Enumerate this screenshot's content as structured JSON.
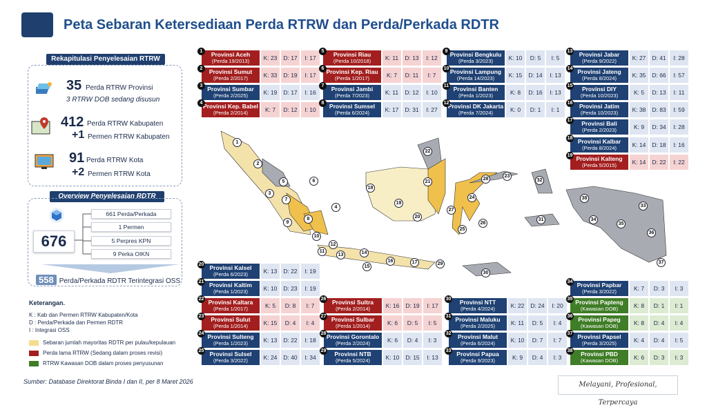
{
  "title": "Peta Sebaran Ketersediaan Perda RTRW dan Perda/Perkada RDTR",
  "rekap": {
    "header": "Rekapitulasi Penyelesaian RTRW",
    "prov_num": "35",
    "prov_text": "Perda RTRW Provinsi",
    "prov_sub": "3 RTRW DOB sedang disusun",
    "kab_num": "412",
    "kab_text": "Perda RTRW Kabupaten",
    "kab_plus": "+1",
    "kab_plus_text": "Permen RTRW Kabupaten",
    "kota_num": "91",
    "kota_text": "Perda RTRW Kota",
    "kota_plus": "+2",
    "kota_plus_text": "Permen RTRW Kota"
  },
  "rdtr": {
    "header": "Overview Penyelesaian RDTR",
    "total": "676",
    "items": [
      "661 Perda/Perkada",
      "1 Permen",
      "5 Perpres KPN",
      "9 Perka OIKN"
    ],
    "oss_num": "558",
    "oss_text": "Perda/Perkada RDTR Terintegrasi OSS"
  },
  "keterangan": {
    "title": "Keterangan.",
    "k": "K : Kab dan Permen RTRW Kabupaten/Kota",
    "d": "D : Perda/Perkada dan Permen RDTR",
    "i": "I   : Integrasi OSS",
    "leg1": "Sebaran jumlah mayoritas RDTR per pulau/kepulauan",
    "leg2": "Perda lama RTRW (Sedang dalam proses revisi)",
    "leg3": "RTRW Kawasan DOB dalam proses penyusunan",
    "c1": "#f5dc8c",
    "c2": "#a31f1f",
    "c3": "#3f7d26"
  },
  "provinces": [
    {
      "n": "1",
      "name": "Provinsi Aceh",
      "perda": "(Perda 19/2013)",
      "k": "K: 23",
      "d": "D: 17",
      "i": "I: 17",
      "c": "red"
    },
    {
      "n": "2",
      "name": "Provinsi Sumut",
      "perda": "(Perda 2/2017)",
      "k": "K: 33",
      "d": "D: 19",
      "i": "I: 17",
      "c": "red"
    },
    {
      "n": "3",
      "name": "Provinsi Sumbar",
      "perda": "(Perda 2/2025)",
      "k": "K: 19",
      "d": "D: 17",
      "i": "I: 16",
      "c": "blue"
    },
    {
      "n": "4",
      "name": "Provinsi Kep. Babel",
      "perda": "(Perda 2/2014)",
      "k": "K: 7",
      "d": "D: 12",
      "i": "I: 10",
      "c": "red"
    },
    {
      "n": "5",
      "name": "Provinsi Riau",
      "perda": "(Perda 10/2018)",
      "k": "K: 11",
      "d": "D: 13",
      "i": "I: 12",
      "c": "red"
    },
    {
      "n": "6",
      "name": "Provinsi Kep. Riau",
      "perda": "(Perda 1/2017)",
      "k": "K: 7",
      "d": "D: 11",
      "i": "I: 7",
      "c": "red"
    },
    {
      "n": "7",
      "name": "Provinsi Jambi",
      "perda": "(Perda 7/2023)",
      "k": "K: 11",
      "d": "D: 12",
      "i": "I: 10",
      "c": "blue"
    },
    {
      "n": "8",
      "name": "Provinsi Sumsel",
      "perda": "(Perda 6/2024)",
      "k": "K: 17",
      "d": "D: 31",
      "i": "I: 27",
      "c": "blue"
    },
    {
      "n": "9",
      "name": "Provinsi Bengkulu",
      "perda": "(Perda 3/2023)",
      "k": "K: 10",
      "d": "D: 5",
      "i": "I: 5",
      "c": "blue"
    },
    {
      "n": "10",
      "name": "Provinsi Lampung",
      "perda": "(Perda 14/2023)",
      "k": "K: 15",
      "d": "D: 14",
      "i": "I: 13",
      "c": "blue"
    },
    {
      "n": "11",
      "name": "Provinsi Banten",
      "perda": "(Perda 1/2023)",
      "k": "K: 8",
      "d": "D: 16",
      "i": "I: 13",
      "c": "blue"
    },
    {
      "n": "12",
      "name": "Provinsi DK Jakarta",
      "perda": "(Perda 7/2024)",
      "k": "K: 0",
      "d": "D: 1",
      "i": "I: 1",
      "c": "blue"
    },
    {
      "n": "13",
      "name": "Provinsi Jabar",
      "perda": "(Perda 9/2022)",
      "k": "K: 27",
      "d": "D: 41",
      "i": "I: 28",
      "c": "blue"
    },
    {
      "n": "14",
      "name": "Provinsi Jateng",
      "perda": "(Perda 8/2024)",
      "k": "K: 35",
      "d": "D: 66",
      "i": "I: 57",
      "c": "blue"
    },
    {
      "n": "15",
      "name": "Provinsi DIY",
      "perda": "(Perda 10/2023)",
      "k": "K: 5",
      "d": "D: 13",
      "i": "I: 11",
      "c": "blue"
    },
    {
      "n": "16",
      "name": "Provinsi Jatim",
      "perda": "(Perda 10/2023)",
      "k": "K: 38",
      "d": "D: 83",
      "i": "I: 59",
      "c": "blue"
    },
    {
      "n": "17",
      "name": "Provinsi Bali",
      "perda": "(Perda 2/2023)",
      "k": "K: 9",
      "d": "D: 34",
      "i": "I: 28",
      "c": "blue"
    },
    {
      "n": "18",
      "name": "Provinsi Kalbar",
      "perda": "(Perda 8/2024)",
      "k": "K: 14",
      "d": "D: 18",
      "i": "I: 16",
      "c": "blue"
    },
    {
      "n": "19",
      "name": "Provinsi Kalteng",
      "perda": "(Perda 5/2015)",
      "k": "K: 14",
      "d": "D: 22",
      "i": "I: 22",
      "c": "red"
    },
    {
      "n": "20",
      "name": "Provinsi Kalsel",
      "perda": "(Perda 6/2023)",
      "k": "K: 13",
      "d": "D: 22",
      "i": "I: 19",
      "c": "blue"
    },
    {
      "n": "21",
      "name": "Provinsi Kaltim",
      "perda": "(Perda 1/2023)",
      "k": "K: 10",
      "d": "D: 23",
      "i": "I: 19",
      "c": "blue"
    },
    {
      "n": "22",
      "name": "Provinsi Kaltara",
      "perda": "(Perda 1/2017)",
      "k": "K: 5",
      "d": "D: 8",
      "i": "I: 7",
      "c": "red"
    },
    {
      "n": "23",
      "name": "Provinsi Sulut",
      "perda": "(Perda 1/2014)",
      "k": "K: 15",
      "d": "D: 4",
      "i": "I: 4",
      "c": "red"
    },
    {
      "n": "24",
      "name": "Provinsi Sulteng",
      "perda": "(Perda 1/2023)",
      "k": "K: 13",
      "d": "D: 22",
      "i": "I: 18",
      "c": "blue"
    },
    {
      "n": "25",
      "name": "Provinsi Sulsel",
      "perda": "(Perda 3/2022)",
      "k": "K: 24",
      "d": "D: 40",
      "i": "I: 34",
      "c": "blue"
    },
    {
      "n": "26",
      "name": "Provinsi Sultra",
      "perda": "(Perda 2/2014)",
      "k": "K: 16",
      "d": "D: 19",
      "i": "I: 17",
      "c": "red"
    },
    {
      "n": "27",
      "name": "Provinsi Sulbar",
      "perda": "(Perda 1/2014)",
      "k": "K: 6",
      "d": "D: 5",
      "i": "I: 5",
      "c": "red"
    },
    {
      "n": "28",
      "name": "Provinsi Gorontalo",
      "perda": "(Perda 2/2024)",
      "k": "K: 6",
      "d": "D: 4",
      "i": "I: 3",
      "c": "blue"
    },
    {
      "n": "29",
      "name": "Provinsi NTB",
      "perda": "(Perda 5/2024)",
      "k": "K: 10",
      "d": "D: 15",
      "i": "I: 13",
      "c": "blue"
    },
    {
      "n": "30",
      "name": "Provinsi NTT",
      "perda": "(Perda 4/2024)",
      "k": "K: 22",
      "d": "D: 24",
      "i": "I: 20",
      "c": "blue"
    },
    {
      "n": "31",
      "name": "Provinsi Maluku",
      "perda": "(Perda 2/2025)",
      "k": "K: 11",
      "d": "D: 5",
      "i": "I: 4",
      "c": "blue"
    },
    {
      "n": "32",
      "name": "Provinsi Malut",
      "perda": "(Perda 6/2024)",
      "k": "K: 10",
      "d": "D: 7",
      "i": "I: 7",
      "c": "blue"
    },
    {
      "n": "33",
      "name": "Provinsi Papua",
      "perda": "(Perda 9/2023)",
      "k": "K: 9",
      "d": "D: 4",
      "i": "I: 3",
      "c": "blue"
    },
    {
      "n": "34",
      "name": "Provinsi Papbar",
      "perda": "(Perda 3/2022)",
      "k": "K: 7",
      "d": "D: 3",
      "i": "I: 3",
      "c": "blue"
    },
    {
      "n": "35",
      "name": "Provinsi Papteng",
      "perda": "(Kawasan DOB)",
      "k": "K: 8",
      "d": "D: 1",
      "i": "I: 1",
      "c": "green"
    },
    {
      "n": "36",
      "name": "Provinsi Papeg",
      "perda": "(Kawasan DOB)",
      "k": "K: 8",
      "d": "D: 4",
      "i": "I: 4",
      "c": "green"
    },
    {
      "n": "37",
      "name": "Provinsi Papsel",
      "perda": "(Perda 3/2025)",
      "k": "K: 4",
      "d": "D: 4",
      "i": "I: 5",
      "c": "blue"
    },
    {
      "n": "38",
      "name": "Provinsi PBD",
      "perda": "(Kawasan DOB)",
      "k": "K: 6",
      "d": "D: 3",
      "i": "I: 3",
      "c": "green"
    }
  ],
  "footer": "Sumber: Database Direktorat Binda I dan II, per 8 Maret 2026",
  "tagline": "Melayani, Profesional, Terpercaya"
}
